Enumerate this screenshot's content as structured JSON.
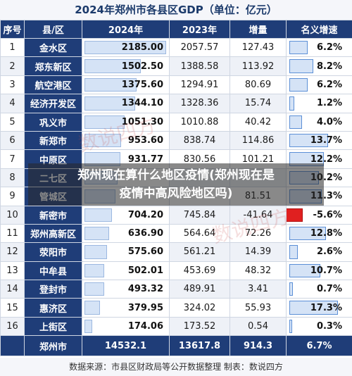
{
  "chart_data": {
    "type": "table",
    "title": "2024年郑州市各县区GDP（单位：亿元）",
    "columns": [
      "序号",
      "县/区",
      "2024年",
      "2023年",
      "增量",
      "名义增速"
    ],
    "rows": [
      {
        "rank": "1",
        "name": "金水区",
        "y2024": "2185.00",
        "y2023": "2057.57",
        "inc": "127.43",
        "growth": "6.2%",
        "v2024": 2185.0,
        "g": 6.2
      },
      {
        "rank": "2",
        "name": "郑东新区",
        "y2024": "1502.50",
        "y2023": "1388.58",
        "inc": "113.92",
        "growth": "8.2%",
        "v2024": 1502.5,
        "g": 8.2
      },
      {
        "rank": "3",
        "name": "航空港区",
        "y2024": "1375.60",
        "y2023": "1294.91",
        "inc": "80.69",
        "growth": "6.2%",
        "v2024": 1375.6,
        "g": 6.2
      },
      {
        "rank": "4",
        "name": "经济开发区",
        "y2024": "1344.10",
        "y2023": "1328.36",
        "inc": "15.74",
        "growth": "1.2%",
        "v2024": 1344.1,
        "g": 1.2
      },
      {
        "rank": "5",
        "name": "巩义市",
        "y2024": "1051.30",
        "y2023": "1010.88",
        "inc": "40.42",
        "growth": "4.0%",
        "v2024": 1051.3,
        "g": 4.0
      },
      {
        "rank": "6",
        "name": "新郑市",
        "y2024": "953.60",
        "y2023": "838.74",
        "inc": "114.86",
        "growth": "13.7%",
        "v2024": 953.6,
        "g": 13.7
      },
      {
        "rank": "7",
        "name": "中原区",
        "y2024": "931.77",
        "y2023": "830.56",
        "inc": "101.21",
        "growth": "12.2%",
        "v2024": 931.77,
        "g": 12.2
      },
      {
        "rank": "8",
        "name": "二七区",
        "y2024": "",
        "y2023": "",
        "inc": "",
        "growth": "10.2%",
        "v2024": 870.0,
        "g": 10.2
      },
      {
        "rank": "9",
        "name": "管城区",
        "y2024": "",
        "y2023": "",
        "inc": "81.51",
        "growth": "11.3%",
        "v2024": 800.0,
        "g": 11.3
      },
      {
        "rank": "10",
        "name": "新密市",
        "y2024": "704.20",
        "y2023": "745.84",
        "inc": "-41.64",
        "growth": "-5.6%",
        "v2024": 704.2,
        "g": -5.6
      },
      {
        "rank": "11",
        "name": "郑州高新区",
        "y2024": "636.90",
        "y2023": "564.64",
        "inc": "72.26",
        "growth": "12.8%",
        "v2024": 636.9,
        "g": 12.8
      },
      {
        "rank": "12",
        "name": "荥阳市",
        "y2024": "575.60",
        "y2023": "561.21",
        "inc": "14.39",
        "growth": "2.6%",
        "v2024": 575.6,
        "g": 2.6
      },
      {
        "rank": "13",
        "name": "中牟县",
        "y2024": "502.01",
        "y2023": "453.69",
        "inc": "48.32",
        "growth": "10.7%",
        "v2024": 502.01,
        "g": 10.7
      },
      {
        "rank": "14",
        "name": "登封市",
        "y2024": "493.32",
        "y2023": "489.91",
        "inc": "3.41",
        "growth": "0.7%",
        "v2024": 493.32,
        "g": 0.7
      },
      {
        "rank": "15",
        "name": "惠济区",
        "y2024": "379.95",
        "y2023": "324.02",
        "inc": "55.93",
        "growth": "17.3%",
        "v2024": 379.95,
        "g": 17.3
      },
      {
        "rank": "16",
        "name": "上街区",
        "y2024": "174.06",
        "y2023": "173.52",
        "inc": "0.54",
        "growth": "0.3%",
        "v2024": 174.06,
        "g": 0.3
      }
    ],
    "total": {
      "name": "郑州市",
      "y2024": "14532.1",
      "y2023": "13617.8",
      "inc": "914.3",
      "growth": "6.7%"
    }
  },
  "source": "数据来源：市县区财政局等公开数据整理   制表：数说四方",
  "overlay": {
    "line1": "郑州现在算什么地区疫情(郑州现在是",
    "line2": "疫情中高风险地区吗)"
  },
  "colors": {
    "header": "#1f3d78",
    "bar": "#d5e3f6",
    "bar_border": "#9cb8e0",
    "negative": "#e02020"
  }
}
